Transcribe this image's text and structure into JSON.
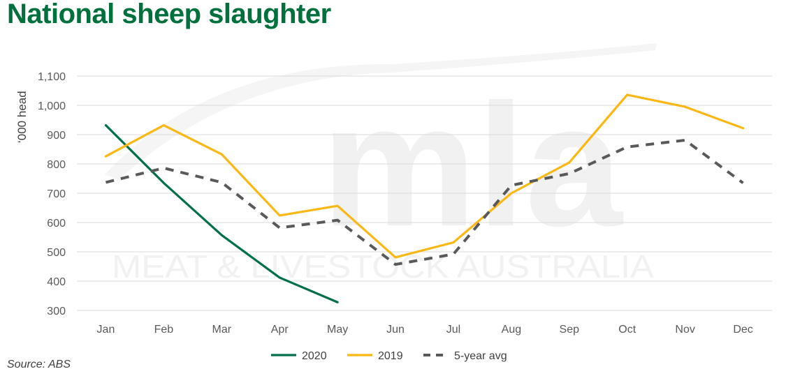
{
  "title": "National sheep slaughter",
  "source": "Source: ABS",
  "watermark": {
    "logo": "mla",
    "text": "MEAT & LIVESTOCK AUSTRALIA"
  },
  "chart_data": {
    "type": "line",
    "title": "National sheep slaughter",
    "ylabel": "‘000 head",
    "xlabel": "",
    "categories": [
      "Jan",
      "Feb",
      "Mar",
      "Apr",
      "May",
      "Jun",
      "Jul",
      "Aug",
      "Sep",
      "Oct",
      "Nov",
      "Dec"
    ],
    "ylim": [
      300,
      1100
    ],
    "yticks": [
      300,
      400,
      500,
      600,
      700,
      800,
      900,
      1000,
      1100
    ],
    "ytick_labels": [
      "300",
      "400",
      "500",
      "600",
      "700",
      "800",
      "900",
      "1,000",
      "1,100"
    ],
    "grid": true,
    "legend_position": "bottom",
    "series": [
      {
        "name": "2020",
        "color": "#00704a",
        "dash": "solid",
        "values": [
          932,
          735,
          557,
          412,
          328,
          null,
          null,
          null,
          null,
          null,
          null,
          null
        ]
      },
      {
        "name": "2019",
        "color": "#fbb714",
        "dash": "solid",
        "values": [
          826,
          932,
          833,
          624,
          657,
          481,
          532,
          700,
          805,
          1036,
          995,
          922
        ]
      },
      {
        "name": "5-year avg",
        "color": "#595959",
        "dash": "dashed",
        "values": [
          737,
          786,
          737,
          582,
          608,
          457,
          492,
          727,
          767,
          858,
          881,
          735
        ]
      }
    ]
  }
}
